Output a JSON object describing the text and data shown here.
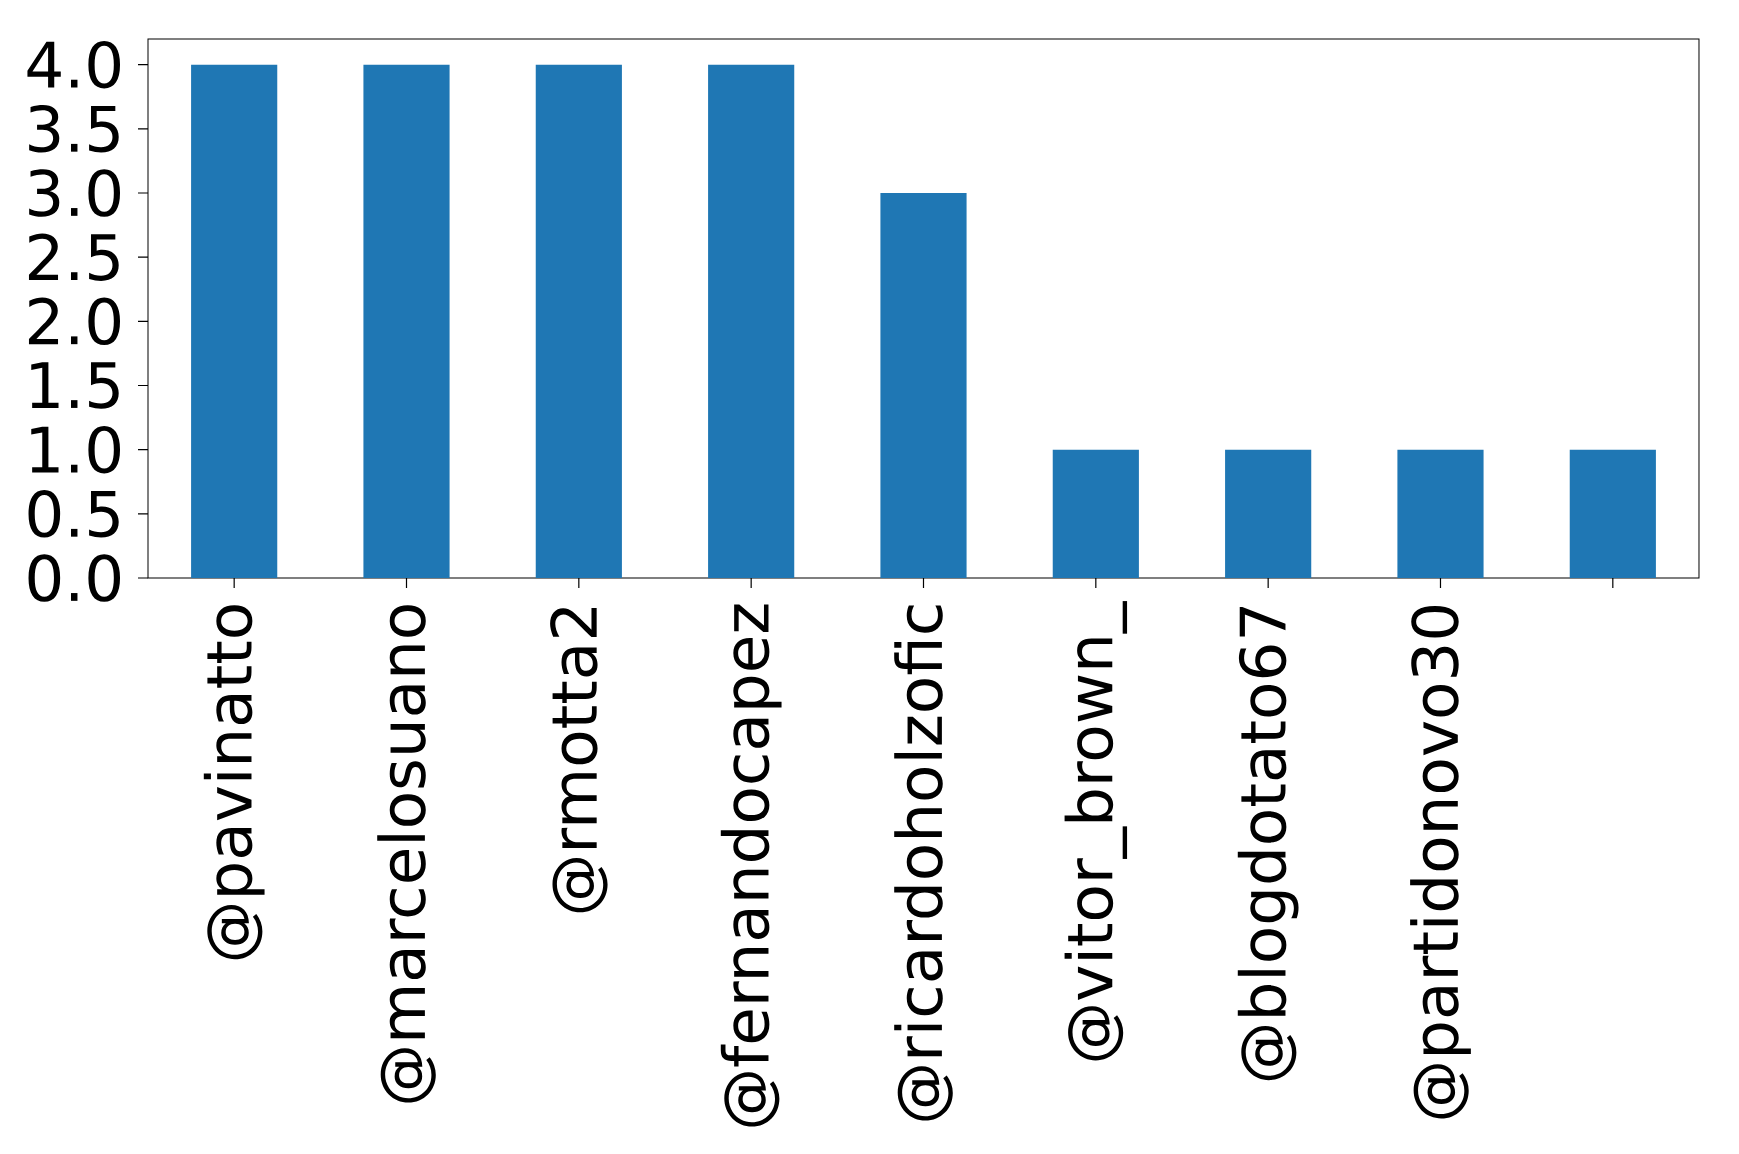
{
  "chart_data": {
    "type": "bar",
    "categories": [
      "@pavinatto",
      "@marcelosuano",
      "@rmotta2",
      "@fernandocapez",
      "@ricardoholzofic",
      "@vitor_brown_",
      "@blogdotato67",
      "@partidonovo30",
      null
    ],
    "values": [
      4,
      4,
      4,
      4,
      3,
      1,
      1,
      1,
      1
    ],
    "color": "#1f77b4",
    "ylim": [
      0,
      4.2
    ],
    "yticks": [
      {
        "value": 0,
        "label": "0.0"
      },
      {
        "value": 0.5,
        "label": "0.5"
      },
      {
        "value": 1,
        "label": "1.0"
      },
      {
        "value": 1.5,
        "label": "1.5"
      },
      {
        "value": 2,
        "label": "2.0"
      },
      {
        "value": 2.5,
        "label": "2.5"
      },
      {
        "value": 3,
        "label": "3.0"
      },
      {
        "value": 3.5,
        "label": "3.5"
      },
      {
        "value": 4,
        "label": "4.0"
      }
    ]
  }
}
